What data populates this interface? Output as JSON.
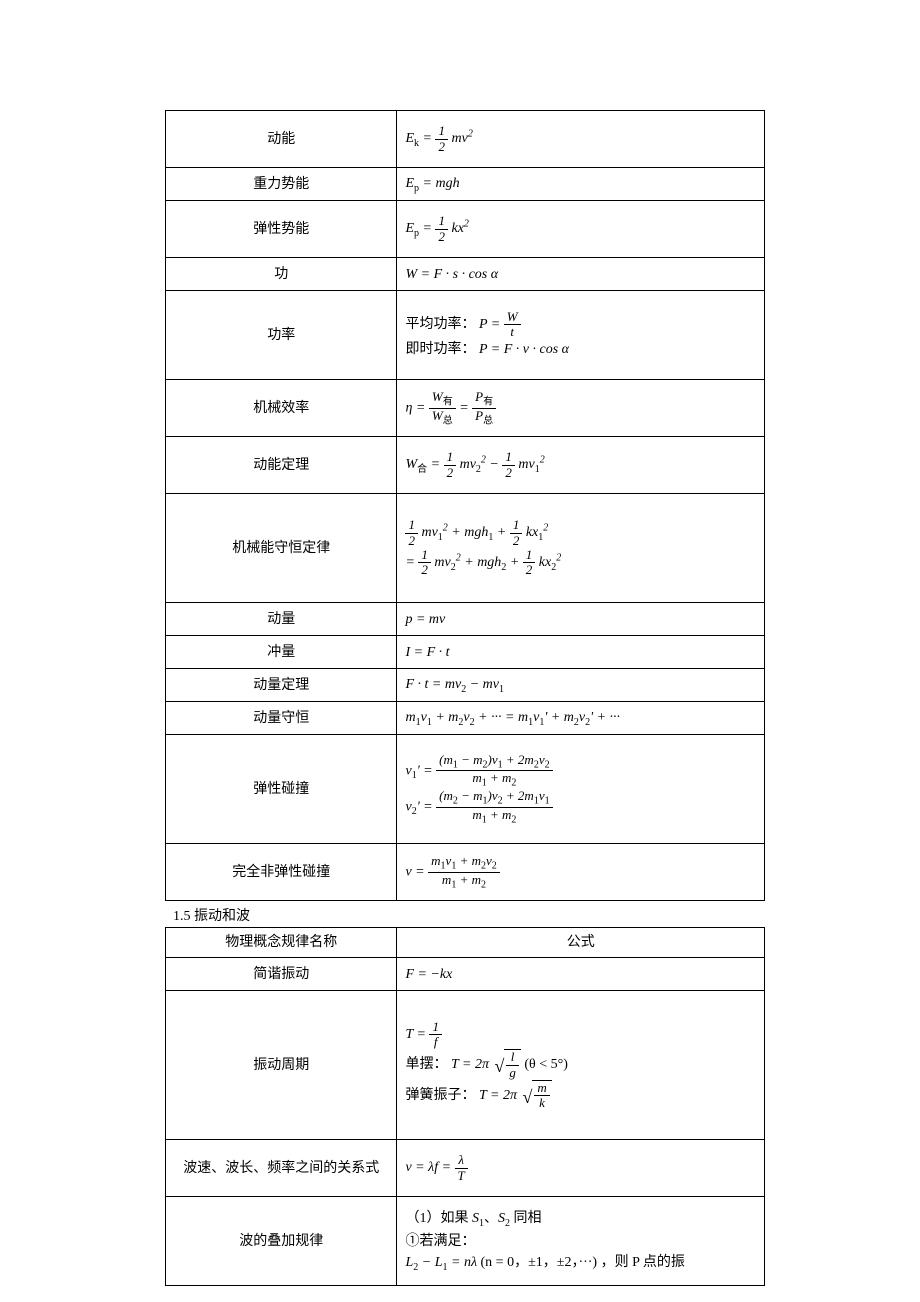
{
  "table1": {
    "rows": [
      {
        "name": "动能",
        "formula": "E<sub>k</sub> = <span class='frac'><span class='num'>1</span><span class='den'>2</span></span> mv<sup>2</sup>",
        "cls": "tall-row"
      },
      {
        "name": "重力势能",
        "formula": "E<sub>p</sub> = mgh",
        "cls": "short-row"
      },
      {
        "name": "弹性势能",
        "formula": "E<sub>p</sub> = <span class='frac'><span class='num'>1</span><span class='den'>2</span></span> kx<sup>2</sup>",
        "cls": "tall-row"
      },
      {
        "name": "功",
        "formula": "W = F · s · cos α",
        "cls": "short-row"
      },
      {
        "name": "功率",
        "formula": "<span class='cn'>平均功率：</span> P = <span class='frac'><span class='num'>W</span><span class='den'>t</span></span><br><span class='cn'>即时功率：</span> P = F · v · cos α",
        "cls": "big-row"
      },
      {
        "name": "机械效率",
        "formula": "η = <span class='frac'><span class='num'>W<sub>有</sub></span><span class='den'>W<sub>总</sub></span></span> = <span class='frac'><span class='num'>P<sub>有</sub></span><span class='den'>P<sub>总</sub></span></span>",
        "cls": "tall-row"
      },
      {
        "name": "动能定理",
        "formula": "W<sub>合</sub> = <span class='frac'><span class='num'>1</span><span class='den'>2</span></span> mv<sub>2</sub><sup>2</sup> − <span class='frac'><span class='num'>1</span><span class='den'>2</span></span> mv<sub>1</sub><sup>2</sup>",
        "cls": "tall-row"
      },
      {
        "name": "机械能守恒定律",
        "formula": "<span class='frac'><span class='num'>1</span><span class='den'>2</span></span> mv<sub>1</sub><sup>2</sup> + mgh<sub>1</sub> + <span class='frac'><span class='num'>1</span><span class='den'>2</span></span> kx<sub>1</sub><sup>2</sup><br>= <span class='frac'><span class='num'>1</span><span class='den'>2</span></span> mv<sub>2</sub><sup>2</sup> + mgh<sub>2</sub> + <span class='frac'><span class='num'>1</span><span class='den'>2</span></span> kx<sub>2</sub><sup>2</sup>",
        "cls": "huge-row"
      },
      {
        "name": "动量",
        "formula": "p = mv",
        "cls": "short-row"
      },
      {
        "name": "冲量",
        "formula": "I = F · t",
        "cls": "short-row"
      },
      {
        "name": "动量定理",
        "formula": "F · t = mv<sub>2</sub> − mv<sub>1</sub>",
        "cls": "short-row"
      },
      {
        "name": "动量守恒",
        "formula": "m<sub>1</sub>v<sub>1</sub> + m<sub>2</sub>v<sub>2</sub> + ··· = m<sub>1</sub>v<sub>1</sub>' + m<sub>2</sub>v<sub>2</sub>' + ···",
        "cls": "short-row"
      },
      {
        "name": "弹性碰撞",
        "formula": "v<sub>1</sub>' = <span class='frac'><span class='num'>(m<sub>1</sub> − m<sub>2</sub>)v<sub>1</sub> + 2m<sub>2</sub>v<sub>2</sub></span><span class='den'>m<sub>1</sub> + m<sub>2</sub></span></span><br>v<sub>2</sub>' = <span class='frac'><span class='num'>(m<sub>2</sub> − m<sub>1</sub>)v<sub>2</sub> + 2m<sub>1</sub>v<sub>1</sub></span><span class='den'>m<sub>1</sub> + m<sub>2</sub></span></span>",
        "cls": "huge-row"
      },
      {
        "name": "完全非弹性碰撞",
        "formula": "v = <span class='frac'><span class='num'>m<sub>1</sub>v<sub>1</sub> + m<sub>2</sub>v<sub>2</sub></span><span class='den'>m<sub>1</sub> + m<sub>2</sub></span></span>",
        "cls": "tall-row"
      }
    ]
  },
  "section2_title": "1.5  振动和波",
  "table2": {
    "header": {
      "name": "物理概念规律名称",
      "formula": "公式"
    },
    "rows": [
      {
        "name": "简谐振动",
        "formula": "F = −kx",
        "cls": "short-row"
      },
      {
        "name": "振动周期",
        "formula": "T = <span class='frac'><span class='num'>1</span><span class='den'>f</span></span><br><span class='cn'>单摆：</span> T = 2π <span class='sq'><span class='rad'><span class='frac'><span class='num'>l</span><span class='den'>g</span></span></span></span> <span class='cn'>(θ &lt; 5°)</span><br><span class='cn'>弹簧振子：</span> T = 2π <span class='sq'><span class='rad'><span class='frac'><span class='num'>m</span><span class='den'>k</span></span></span></span>",
        "cls": "giant-row"
      },
      {
        "name": "波速、波长、频率之间的关系式",
        "formula": "v = λf = <span class='frac'><span class='num'>λ</span><span class='den'>T</span></span>",
        "cls": "tall-row"
      },
      {
        "name": "波的叠加规律",
        "formula": "<span class='cn'>（1）如果 </span>S<sub>1</sub><span class='cn'>、</span>S<sub>2</sub><span class='cn'> 同相</span><br><span class='cn'>①若满足：</span><br>L<sub>2</sub> − L<sub>1</sub> = nλ <span class='cn'>(n = 0，±1，±2，···) ，则 P 点的振</span>",
        "cls": "big-row"
      }
    ]
  }
}
